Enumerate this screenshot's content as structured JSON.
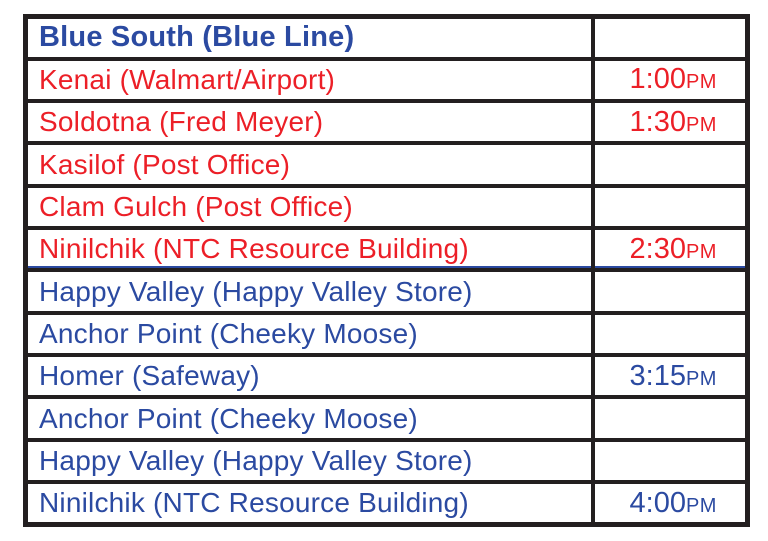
{
  "page": {
    "background": "#ffffff"
  },
  "colors": {
    "red": "#ec1f27",
    "blue": "#2b4aa1",
    "border": "#231f20"
  },
  "table": {
    "header": {
      "route_name": "Blue South (Blue Line)",
      "time": ""
    },
    "rows": [
      {
        "stop": "Kenai (Walmart/Airport)",
        "time": "1:00",
        "meridiem": "PM",
        "color": "red"
      },
      {
        "stop": "Soldotna (Fred Meyer)",
        "time": "1:30",
        "meridiem": "PM",
        "color": "red"
      },
      {
        "stop": "Kasilof (Post Office)",
        "time": "",
        "meridiem": "",
        "color": "red"
      },
      {
        "stop": "Clam Gulch (Post Office)",
        "time": "",
        "meridiem": "",
        "color": "red"
      },
      {
        "stop": "Ninilchik (NTC Resource Building)",
        "time": "2:30",
        "meridiem": "PM",
        "color": "red",
        "divider_after": true
      },
      {
        "stop": "Happy Valley (Happy Valley Store)",
        "time": "",
        "meridiem": "",
        "color": "blue"
      },
      {
        "stop": "Anchor Point (Cheeky Moose)",
        "time": "",
        "meridiem": "",
        "color": "blue"
      },
      {
        "stop": "Homer (Safeway)",
        "time": "3:15",
        "meridiem": "PM",
        "color": "blue"
      },
      {
        "stop": "Anchor Point (Cheeky Moose)",
        "time": "",
        "meridiem": "",
        "color": "blue"
      },
      {
        "stop": "Happy Valley (Happy Valley Store)",
        "time": "",
        "meridiem": "",
        "color": "blue"
      },
      {
        "stop": "Ninilchik (NTC Resource Building)",
        "time": "4:00",
        "meridiem": "PM",
        "color": "blue"
      }
    ]
  }
}
